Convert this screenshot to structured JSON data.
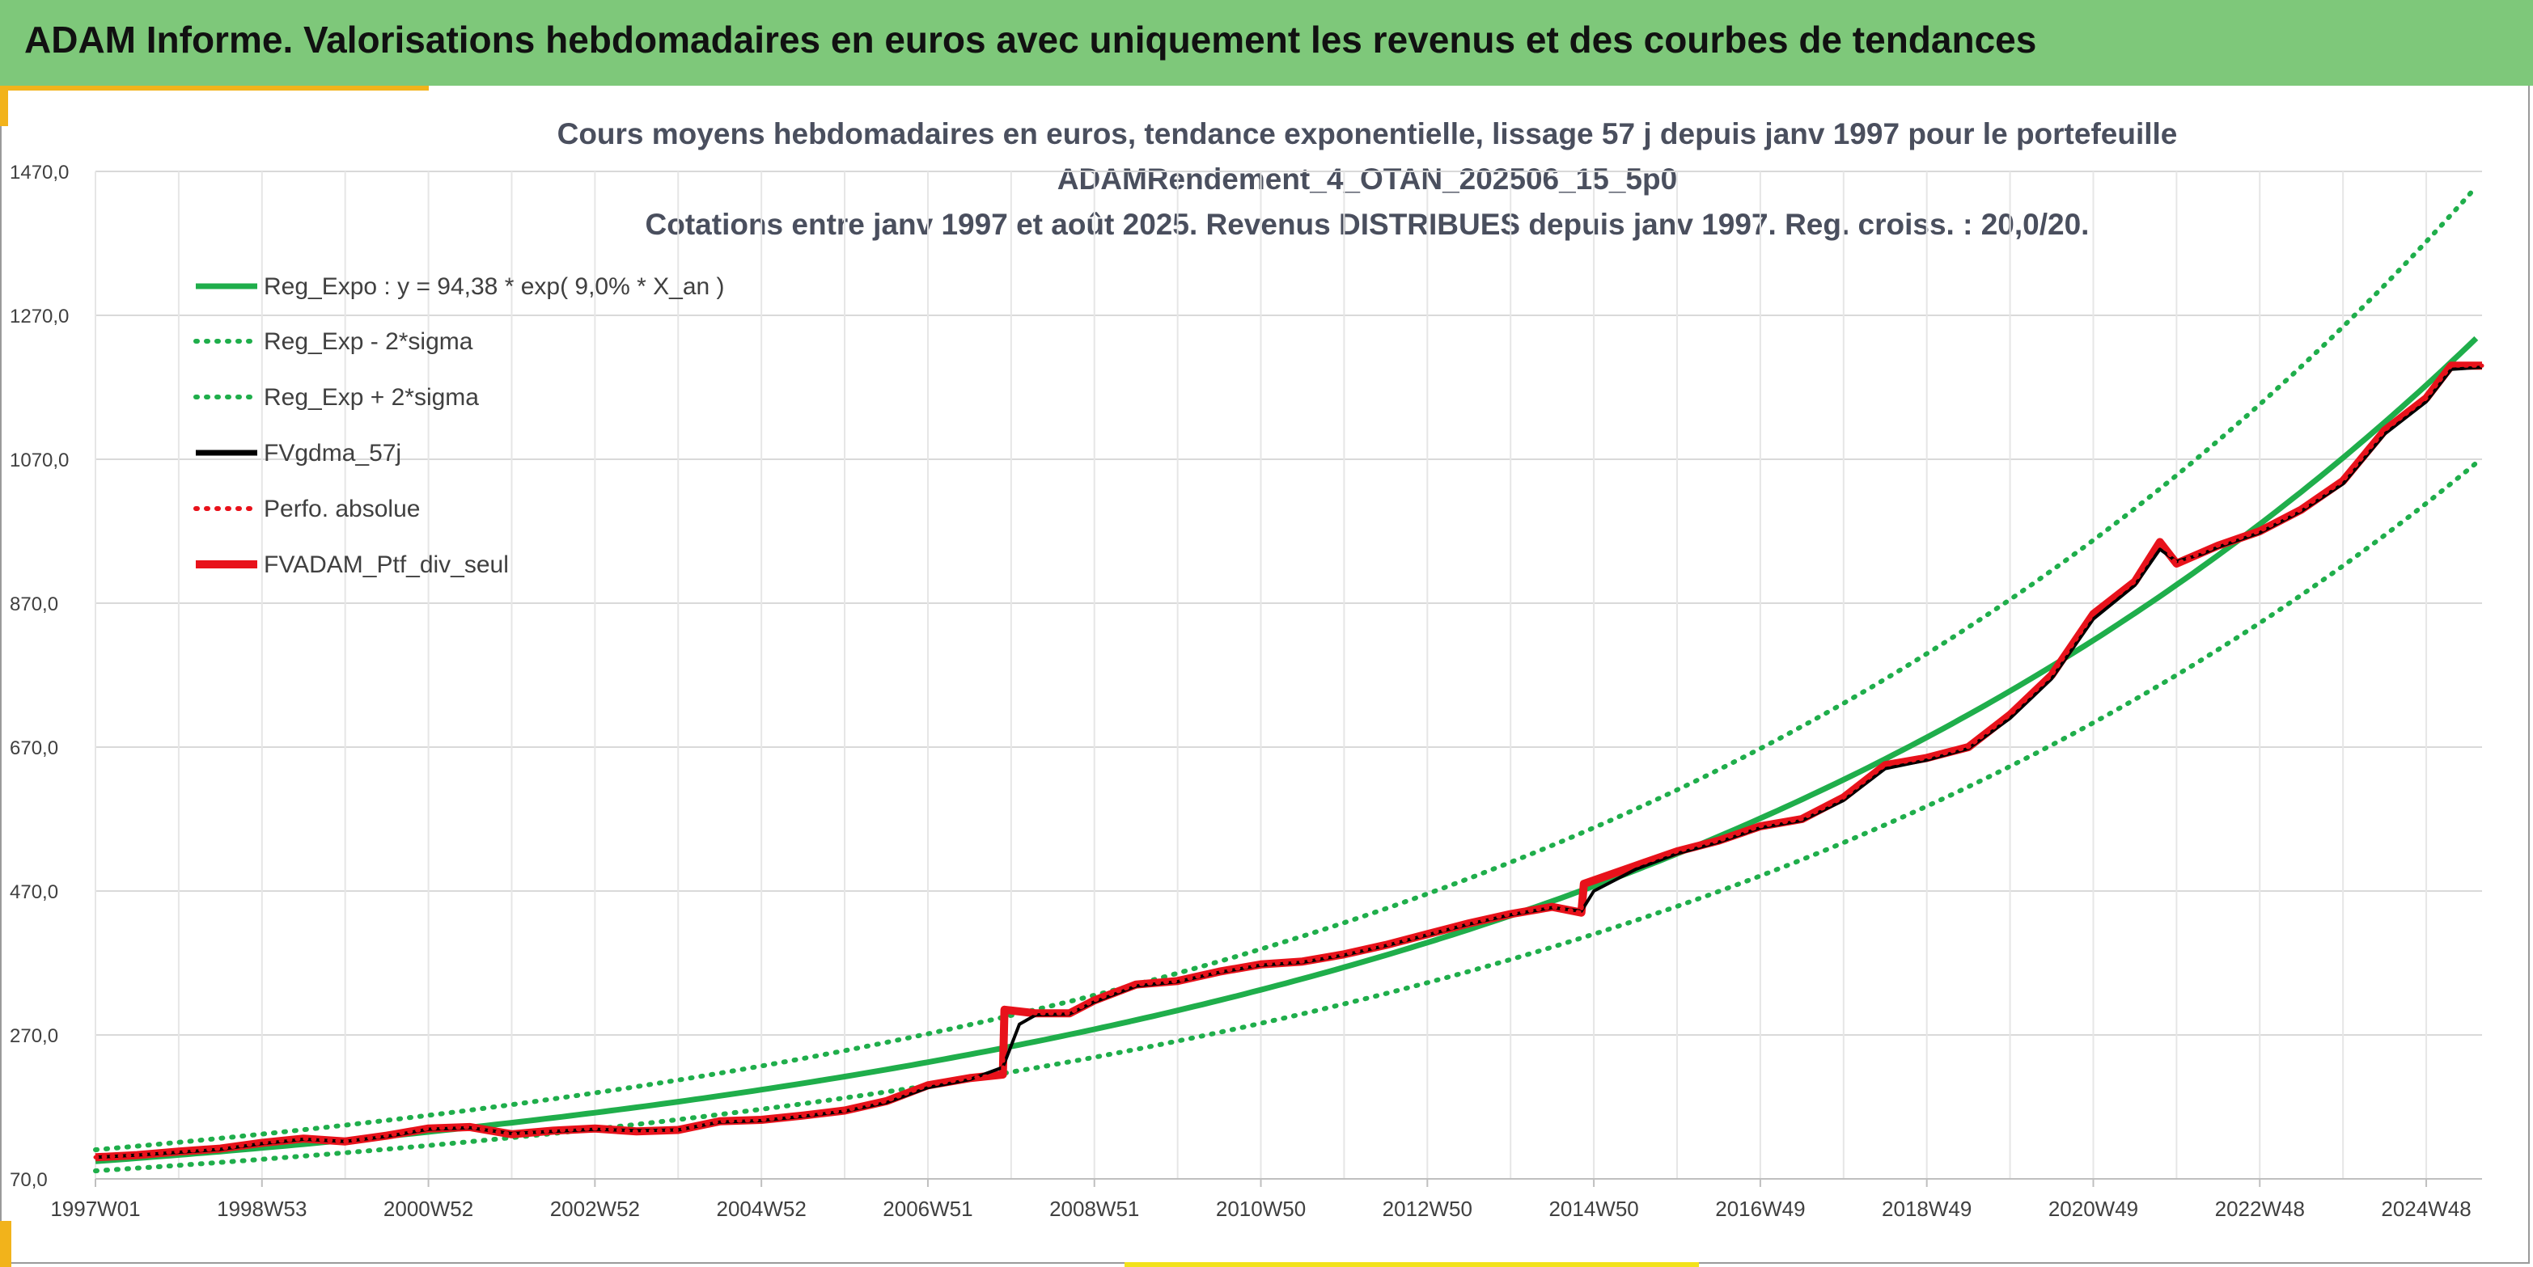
{
  "header": {
    "title": "ADAM Informe. Valorisations hebdomadaires en euros avec uniquement les revenus et des courbes de tendances"
  },
  "colors": {
    "header_bg": "#7ec87a",
    "accent": "#f2b31b",
    "reg_expo": "#1fae4b",
    "fvgdma": "#000000",
    "ptf": "#e8121b"
  },
  "chart_data": {
    "type": "line",
    "title_lines": [
      "Cours moyens hebdomadaires en euros, tendance exponentielle, lissage 57 j depuis janv 1997 pour le portefeuille",
      "ADAMRendement_4_OTAN_202506_15_5p0",
      "Cotations entre janv 1997 et août 2025. Revenus DISTRIBUES depuis janv 1997. Reg. croiss. : 20,0/20."
    ],
    "x_tick_labels": [
      "1997W01",
      "1998W53",
      "2000W52",
      "2002W52",
      "2004W52",
      "2006W51",
      "2008W51",
      "2010W50",
      "2012W50",
      "2014W50",
      "2016W49",
      "2018W49",
      "2020W49",
      "2022W48",
      "2024W48"
    ],
    "x_tick_years": [
      1997,
      1999,
      2001,
      2003,
      2005,
      2007,
      2009,
      2011,
      2013,
      2015,
      2017,
      2019,
      2021,
      2023,
      2025
    ],
    "xlim": [
      1997,
      2025.67
    ],
    "y_tick_labels": [
      "70,0",
      "270,0",
      "470,0",
      "670,0",
      "870,0",
      "1070,0",
      "1270,0",
      "1470,0"
    ],
    "y_ticks": [
      70,
      270,
      470,
      670,
      870,
      1070,
      1270,
      1470
    ],
    "ylim": [
      70,
      1470
    ],
    "grid": true,
    "legend_position": "top-left",
    "legend": [
      {
        "label": "Reg_Expo : y = 94,38 * exp( 9,0% *  X_an )",
        "style": "solid",
        "color": "#1fae4b"
      },
      {
        "label": "Reg_Exp - 2*sigma",
        "style": "dotted",
        "color": "#1fae4b"
      },
      {
        "label": "Reg_Exp + 2*sigma",
        "style": "dotted",
        "color": "#1fae4b"
      },
      {
        "label": "FVgdma_57j",
        "style": "solid",
        "color": "#000000"
      },
      {
        "label": "Perfo. absolue",
        "style": "dotted",
        "color": "#e8121b"
      },
      {
        "label": "FVADAM_Ptf_div_seul",
        "style": "solid",
        "color": "#e8121b"
      }
    ],
    "regression": {
      "a": 94.38,
      "rate": 0.09,
      "lower_factor": 0.86,
      "upper_factor": 1.17
    },
    "series": [
      {
        "name": "FVADAM_Ptf_div_seul",
        "x": [
          1997.0,
          1997.5,
          1998.0,
          1998.5,
          1999.0,
          1999.5,
          2000.0,
          2000.5,
          2001.0,
          2001.5,
          2002.0,
          2002.5,
          2003.0,
          2003.5,
          2004.0,
          2004.5,
          2005.0,
          2005.5,
          2006.0,
          2006.5,
          2007.0,
          2007.5,
          2007.9,
          2007.92,
          2008.3,
          2008.7,
          2009.0,
          2009.5,
          2010.0,
          2010.5,
          2011.0,
          2011.5,
          2012.0,
          2012.5,
          2013.0,
          2013.5,
          2014.0,
          2014.5,
          2014.85,
          2014.88,
          2015.5,
          2016.0,
          2016.5,
          2017.0,
          2017.5,
          2018.0,
          2018.5,
          2019.0,
          2019.5,
          2020.0,
          2020.5,
          2021.0,
          2021.5,
          2021.8,
          2022.0,
          2022.3,
          2022.5,
          2023.0,
          2023.5,
          2024.0,
          2024.5,
          2025.0,
          2025.3,
          2025.67
        ],
        "values": [
          100,
          103,
          108,
          112,
          120,
          126,
          122,
          130,
          140,
          142,
          132,
          137,
          140,
          136,
          138,
          150,
          152,
          158,
          165,
          178,
          200,
          210,
          215,
          305,
          300,
          300,
          318,
          340,
          345,
          358,
          368,
          372,
          382,
          395,
          410,
          425,
          438,
          448,
          440,
          480,
          505,
          525,
          540,
          560,
          570,
          600,
          645,
          655,
          670,
          715,
          770,
          855,
          900,
          955,
          925,
          940,
          950,
          970,
          1000,
          1040,
          1110,
          1155,
          1200,
          1200
        ]
      },
      {
        "name": "FVgdma_57j",
        "x": [
          1997.0,
          1997.5,
          1998.0,
          1998.5,
          1999.0,
          1999.5,
          2000.0,
          2000.5,
          2001.0,
          2001.5,
          2002.0,
          2002.5,
          2003.0,
          2003.5,
          2004.0,
          2004.5,
          2005.0,
          2005.5,
          2006.0,
          2006.5,
          2007.0,
          2007.5,
          2007.9,
          2008.1,
          2008.3,
          2008.7,
          2009.0,
          2009.5,
          2010.0,
          2010.5,
          2011.0,
          2011.5,
          2012.0,
          2012.5,
          2013.0,
          2013.5,
          2014.0,
          2014.5,
          2014.85,
          2015.0,
          2015.5,
          2016.0,
          2016.5,
          2017.0,
          2017.5,
          2018.0,
          2018.5,
          2019.0,
          2019.5,
          2020.0,
          2020.5,
          2021.0,
          2021.5,
          2021.8,
          2022.0,
          2022.3,
          2022.5,
          2023.0,
          2023.5,
          2024.0,
          2024.5,
          2025.0,
          2025.3,
          2025.67
        ],
        "values": [
          100,
          103,
          107,
          111,
          119,
          125,
          122,
          129,
          139,
          141,
          133,
          136,
          139,
          137,
          138,
          149,
          151,
          157,
          164,
          176,
          197,
          208,
          225,
          285,
          298,
          299,
          316,
          338,
          344,
          357,
          367,
          371,
          381,
          394,
          409,
          424,
          437,
          447,
          442,
          470,
          500,
          522,
          538,
          558,
          568,
          596,
          640,
          652,
          668,
          710,
          765,
          848,
          895,
          945,
          928,
          938,
          948,
          968,
          998,
          1036,
          1105,
          1150,
          1195,
          1198
        ]
      }
    ]
  }
}
